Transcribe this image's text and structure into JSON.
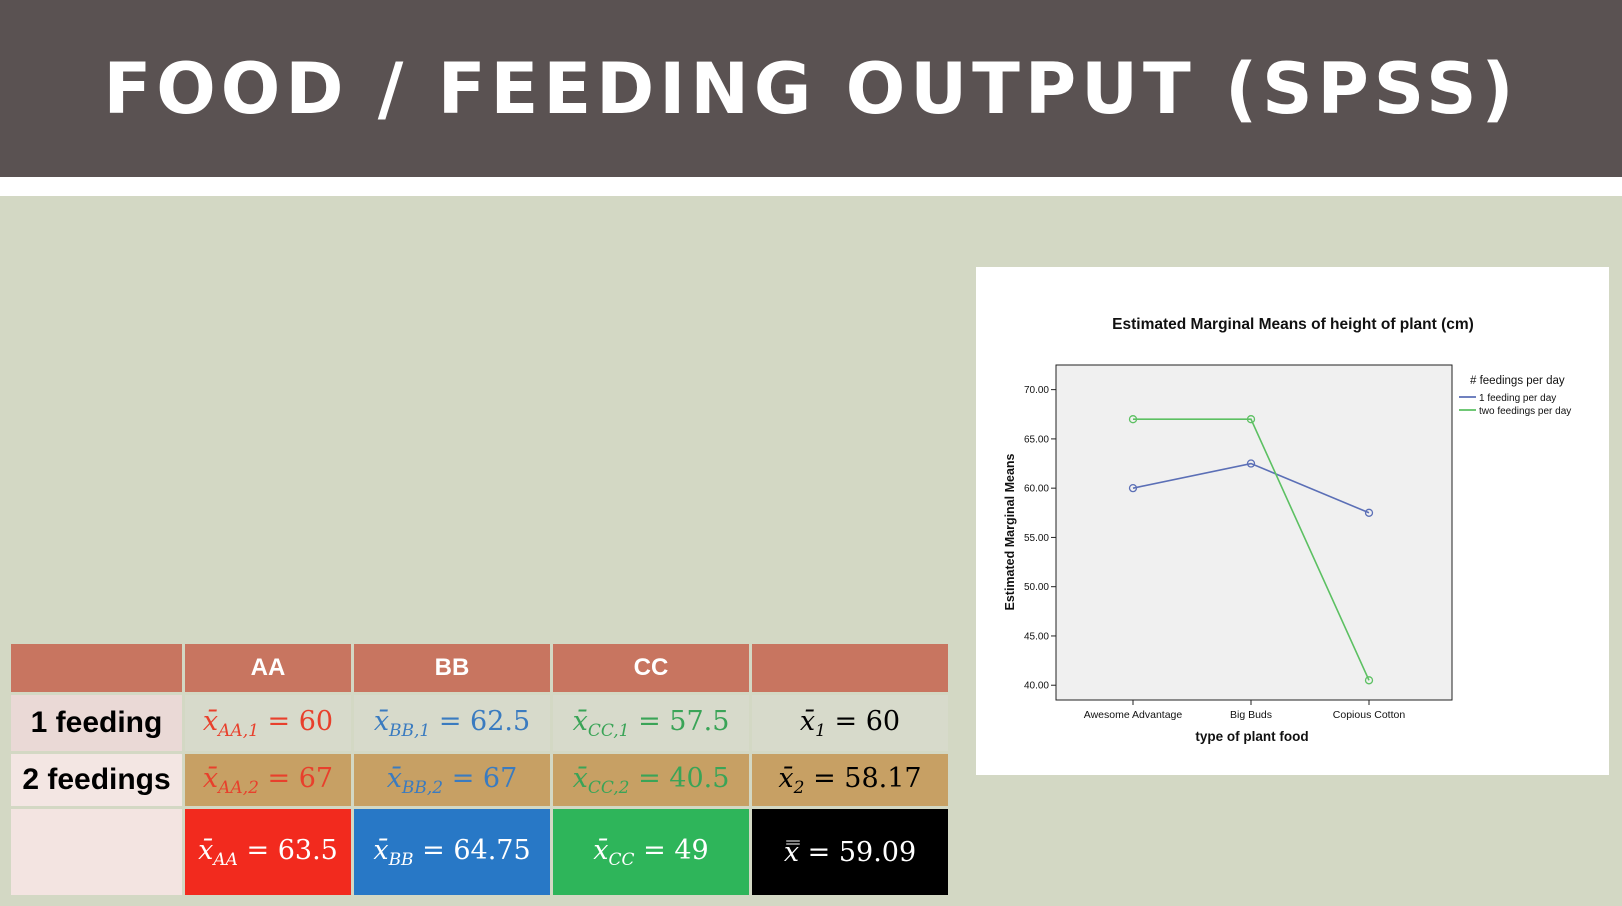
{
  "slide": {
    "title": "FOOD / FEEDING OUTPUT (SPSS)"
  },
  "table": {
    "headers": [
      "",
      "AA",
      "BB",
      "CC",
      ""
    ],
    "rows": [
      {
        "label": "1 feeding",
        "cells": [
          {
            "sym": "x̄",
            "sub": "AA,1",
            "val": "= 60",
            "color": "#e8402c"
          },
          {
            "sym": "x̄",
            "sub": "BB,1",
            "val": "= 62.5",
            "color": "#3a7bc0"
          },
          {
            "sym": "x̄",
            "sub": "CC,1",
            "val": "= 57.5",
            "color": "#3aa457"
          },
          {
            "sym": "x̄",
            "sub": "1",
            "val": "= 60",
            "color": "#000000"
          }
        ]
      },
      {
        "label": "2 feedings",
        "cells": [
          {
            "sym": "x̄",
            "sub": "AA,2",
            "val": "= 67",
            "color": "#e8402c"
          },
          {
            "sym": "x̄",
            "sub": "BB,2",
            "val": "= 67",
            "color": "#3a7bc0"
          },
          {
            "sym": "x̄",
            "sub": "CC,2",
            "val": "= 40.5",
            "color": "#3aa457"
          },
          {
            "sym": "x̄",
            "sub": "2",
            "val": "= 58.17",
            "color": "#000000"
          }
        ]
      },
      {
        "label": "",
        "cells": [
          {
            "sym": "x̄",
            "sub": "AA",
            "val": "= 63.5",
            "color": "#ffffff",
            "bg": "#f22a1e"
          },
          {
            "sym": "x̄",
            "sub": "BB",
            "val": "= 64.75",
            "color": "#ffffff",
            "bg": "#2878c6"
          },
          {
            "sym": "x̄",
            "sub": "CC",
            "val": "= 49",
            "color": "#ffffff",
            "bg": "#2eb55a"
          },
          {
            "sym": "x̿",
            "sub": "",
            "val": "= 59.09",
            "color": "#ffffff",
            "bg": "#000000"
          }
        ]
      }
    ]
  },
  "chart_data": {
    "type": "line",
    "title": "Estimated Marginal Means of height of plant (cm)",
    "xlabel": "type of plant food",
    "ylabel": "Estimated Marginal Means",
    "categories": [
      "Awesome Advantage",
      "Big Buds",
      "Copious Cotton"
    ],
    "ylim": [
      38.5,
      72.5
    ],
    "yticks": [
      "40.00",
      "45.00",
      "50.00",
      "55.00",
      "60.00",
      "65.00",
      "70.00"
    ],
    "yticks_values": [
      40,
      45,
      50,
      55,
      60,
      65,
      70
    ],
    "legend_title": "# feedings per day",
    "legend_position": "right",
    "grid": false,
    "series": [
      {
        "name": "1 feeding per day",
        "values": [
          60,
          62.5,
          57.5
        ],
        "color": "#5b6fb6"
      },
      {
        "name": "two feedings per day",
        "values": [
          67,
          67,
          40.5
        ],
        "color": "#5cc062"
      }
    ]
  }
}
